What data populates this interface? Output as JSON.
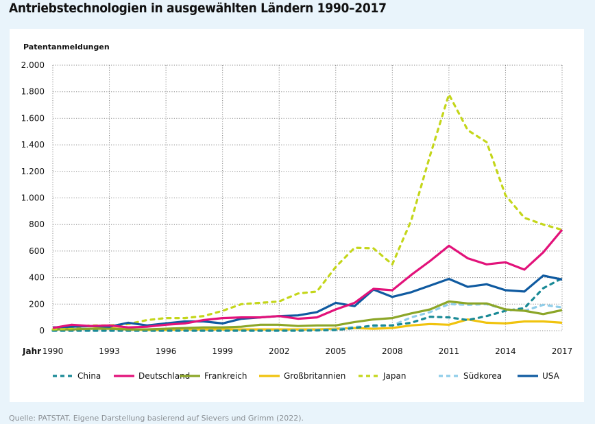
{
  "title": "Antriebstechnologien in ausgewählten Ländern 1990–2017",
  "source": "Quelle: PATSTAT. Eigene Darstellung basierend auf Sievers und Grimm (2022).",
  "chart_data": {
    "type": "line",
    "title": "Antriebstechnologien in ausgewählten Ländern 1990–2017",
    "ylabel": "Patentanmeldungen",
    "xlabel": "Jahr",
    "ylim": [
      0,
      2000
    ],
    "yticks": [
      0,
      200,
      400,
      600,
      800,
      1000,
      1200,
      1400,
      1600,
      1800,
      2000
    ],
    "ytick_labels": [
      "0",
      "200",
      "400",
      "600",
      "800",
      "1.000",
      "1.200",
      "1.400",
      "1.600",
      "1.800",
      "2.000"
    ],
    "xlim": [
      1990,
      2017
    ],
    "xticks": [
      1990,
      1993,
      1996,
      1999,
      2002,
      2005,
      2008,
      2011,
      2014,
      2017
    ],
    "xtick_labels": [
      "1990",
      "1993",
      "1996",
      "1999",
      "2002",
      "2005",
      "2008",
      "2011",
      "2014",
      "2017"
    ],
    "grid": true,
    "legend_position": "bottom",
    "x": [
      1990,
      1991,
      1992,
      1993,
      1994,
      1995,
      1996,
      1997,
      1998,
      1999,
      2000,
      2001,
      2002,
      2003,
      2004,
      2005,
      2006,
      2007,
      2008,
      2009,
      2010,
      2011,
      2012,
      2013,
      2014,
      2015,
      2016,
      2017
    ],
    "series": [
      {
        "name": "China",
        "color": "#1a8a96",
        "dashed": true,
        "values": [
          0,
          0,
          0,
          0,
          0,
          0,
          0,
          0,
          0,
          0,
          0,
          0,
          0,
          0,
          2,
          5,
          20,
          40,
          40,
          60,
          105,
          100,
          80,
          110,
          150,
          170,
          320,
          395
        ]
      },
      {
        "name": "Deutschland",
        "color": "#e2127a",
        "dashed": false,
        "values": [
          20,
          45,
          35,
          40,
          25,
          30,
          45,
          55,
          80,
          95,
          100,
          100,
          110,
          90,
          100,
          160,
          210,
          315,
          305,
          420,
          525,
          640,
          545,
          500,
          515,
          460,
          590,
          760
        ]
      },
      {
        "name": "Frankreich",
        "color": "#8ca628",
        "dashed": false,
        "values": [
          10,
          10,
          15,
          15,
          10,
          10,
          15,
          20,
          25,
          25,
          30,
          45,
          45,
          35,
          40,
          40,
          65,
          85,
          95,
          130,
          160,
          220,
          205,
          205,
          160,
          150,
          125,
          155
        ]
      },
      {
        "name": "Großbritannien",
        "color": "#f0c30e",
        "dashed": false,
        "values": [
          5,
          30,
          35,
          20,
          10,
          5,
          5,
          10,
          10,
          10,
          10,
          10,
          10,
          10,
          10,
          15,
          20,
          15,
          20,
          40,
          50,
          45,
          85,
          60,
          55,
          70,
          70,
          60
        ]
      },
      {
        "name": "Japan",
        "color": "#c4d61a",
        "dashed": true,
        "values": [
          10,
          20,
          40,
          40,
          50,
          80,
          95,
          95,
          110,
          150,
          200,
          210,
          220,
          280,
          295,
          480,
          625,
          620,
          500,
          830,
          1320,
          1780,
          1510,
          1420,
          1020,
          850,
          800,
          760
        ]
      },
      {
        "name": "Südkorea",
        "color": "#8fcde9",
        "dashed": true,
        "values": [
          0,
          0,
          0,
          0,
          0,
          0,
          0,
          0,
          0,
          0,
          0,
          0,
          0,
          2,
          5,
          10,
          30,
          30,
          40,
          100,
          140,
          200,
          195,
          200,
          160,
          150,
          195,
          175
        ]
      },
      {
        "name": "USA",
        "color": "#0f5aa0",
        "dashed": false,
        "values": [
          25,
          30,
          35,
          30,
          60,
          40,
          55,
          70,
          70,
          55,
          90,
          100,
          110,
          115,
          140,
          210,
          185,
          310,
          255,
          290,
          340,
          390,
          330,
          350,
          305,
          295,
          415,
          385
        ]
      }
    ]
  }
}
